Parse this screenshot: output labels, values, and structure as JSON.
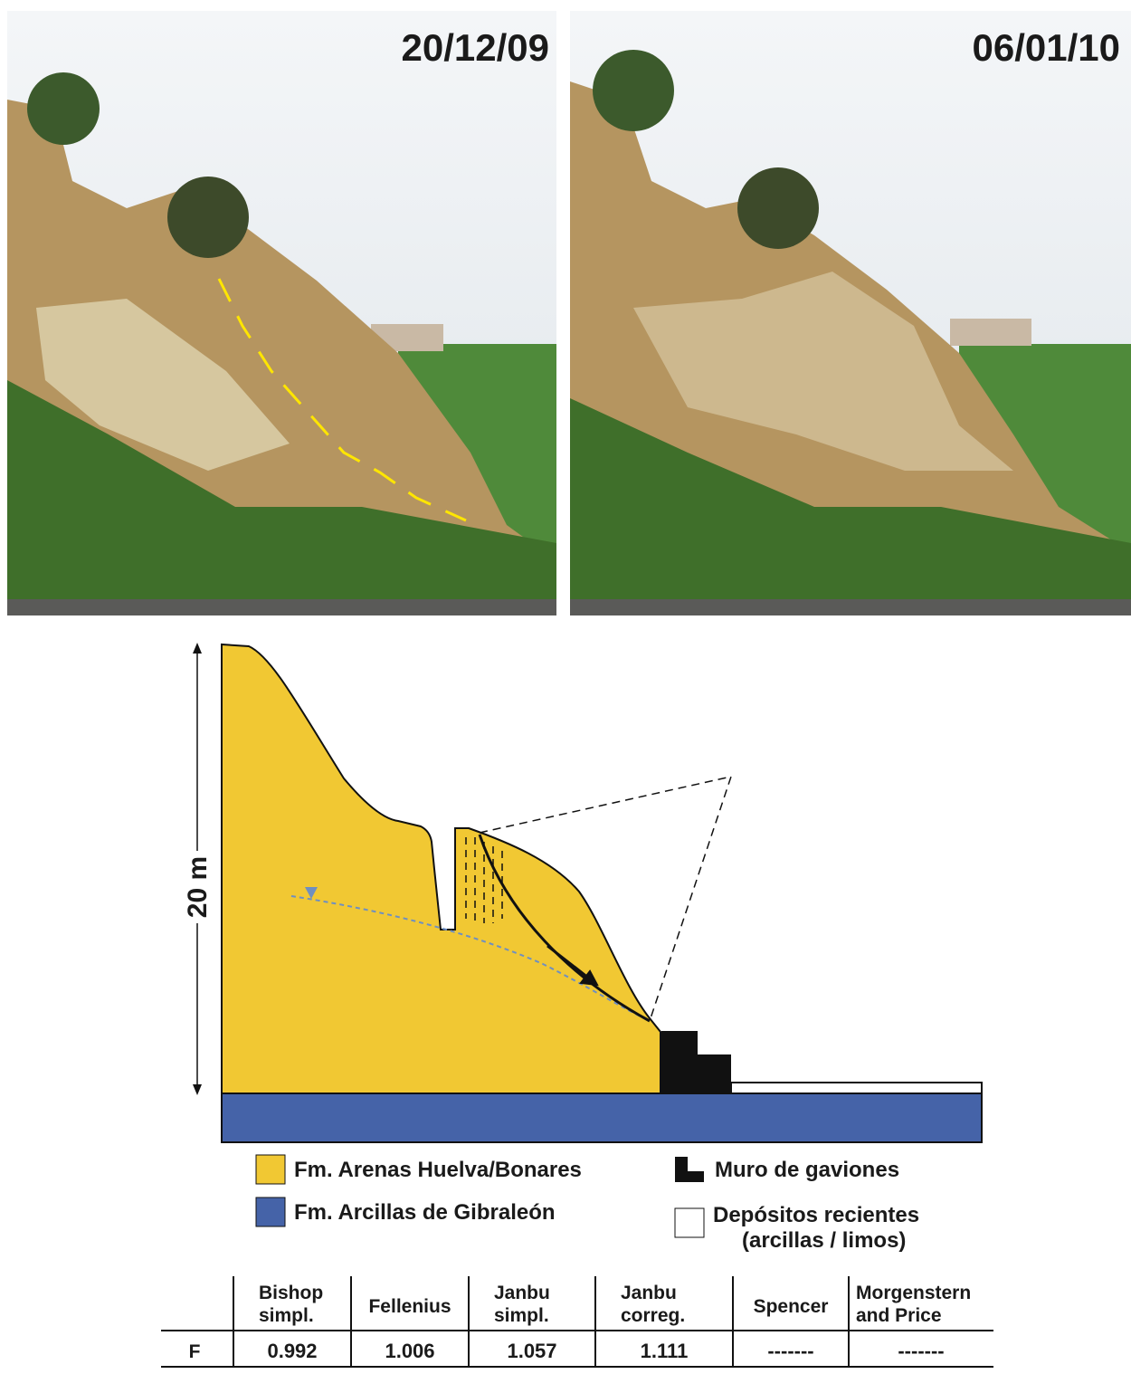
{
  "photos": [
    {
      "date": "20/12/09"
    },
    {
      "date": "06/01/10"
    }
  ],
  "diagram": {
    "scale_label": "20 m",
    "legend": [
      {
        "label": "Fm. Arenas Huelva/Bonares"
      },
      {
        "label": "Fm. Arcillas de Gibraleón"
      },
      {
        "label": "Muro de gaviones"
      },
      {
        "label": "Depósitos recientes",
        "sublabel": "(arcillas / limos)"
      }
    ]
  },
  "table": {
    "row_label": "F",
    "columns": [
      {
        "line1": "Bishop",
        "line2": "simpl."
      },
      {
        "line1": "Fellenius"
      },
      {
        "line1": "Janbu",
        "line2": "simpl."
      },
      {
        "line1": "Janbu",
        "line2": "correg."
      },
      {
        "line1": "Spencer"
      },
      {
        "line1": "Morgenstern",
        "line2": "and Price"
      }
    ],
    "values": [
      0.992,
      1.006,
      1.057,
      1.111,
      "-------",
      "-------"
    ]
  }
}
